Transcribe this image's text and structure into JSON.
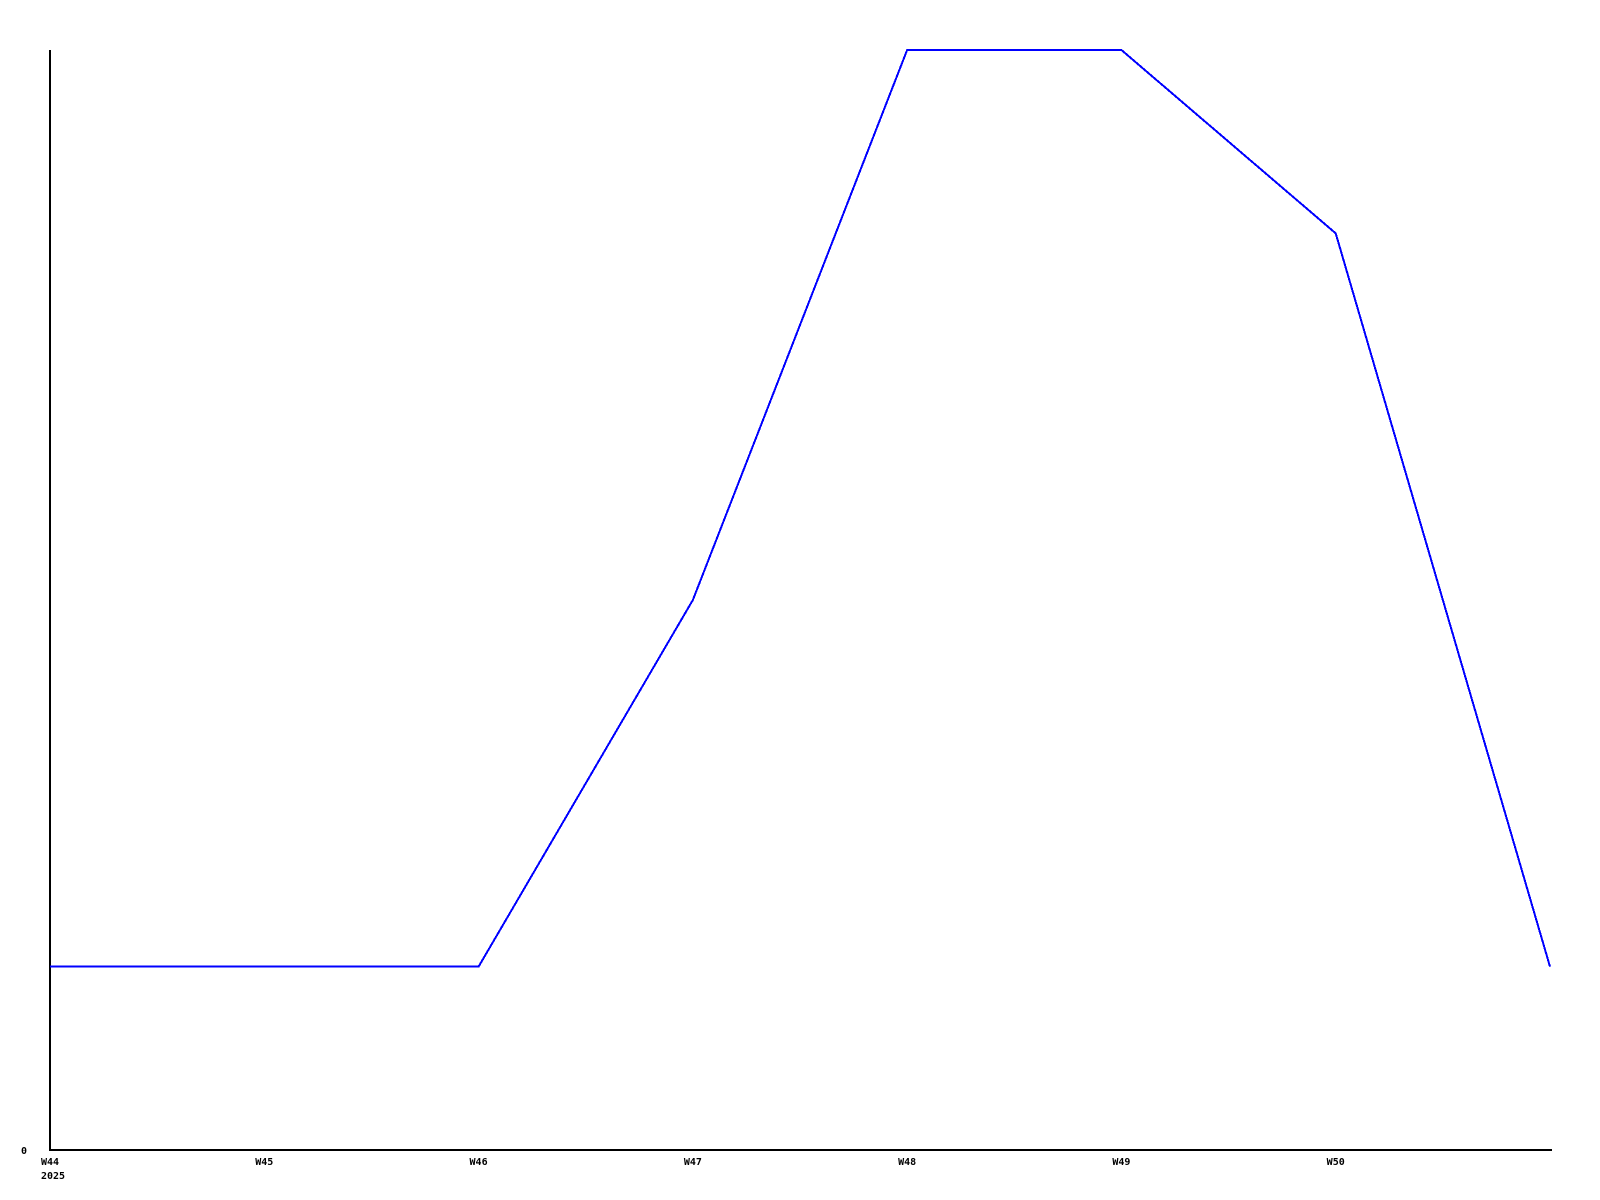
{
  "page": {
    "background_color": "#ffffff"
  },
  "chart": {
    "line_color": "#0000ff",
    "axis_color": "#000000",
    "text_color": "#000000",
    "y_axis_zero_label": "0",
    "x_axis_year_label": "2025"
  },
  "chart_data": {
    "type": "line",
    "title": "",
    "xlabel": "",
    "ylabel": "",
    "categories": [
      "W44",
      "W45",
      "W46",
      "W47",
      "W48",
      "W49",
      "W50",
      ""
    ],
    "values": [
      1,
      1,
      1,
      3,
      6,
      6,
      5,
      1
    ],
    "x_tick_labels": [
      "W44",
      "W45",
      "W46",
      "W47",
      "W48",
      "W49",
      "W50"
    ],
    "year_label": "2025",
    "y_tick_labels": [
      "0"
    ],
    "ylim": [
      0,
      6
    ],
    "grid": false,
    "legend": false,
    "markers_on_labeled_points_only": true,
    "note": "Only y tick shown is 0; top of axis coincides with value 6. Line continues one unlabeled week past W50, returning to 1."
  }
}
